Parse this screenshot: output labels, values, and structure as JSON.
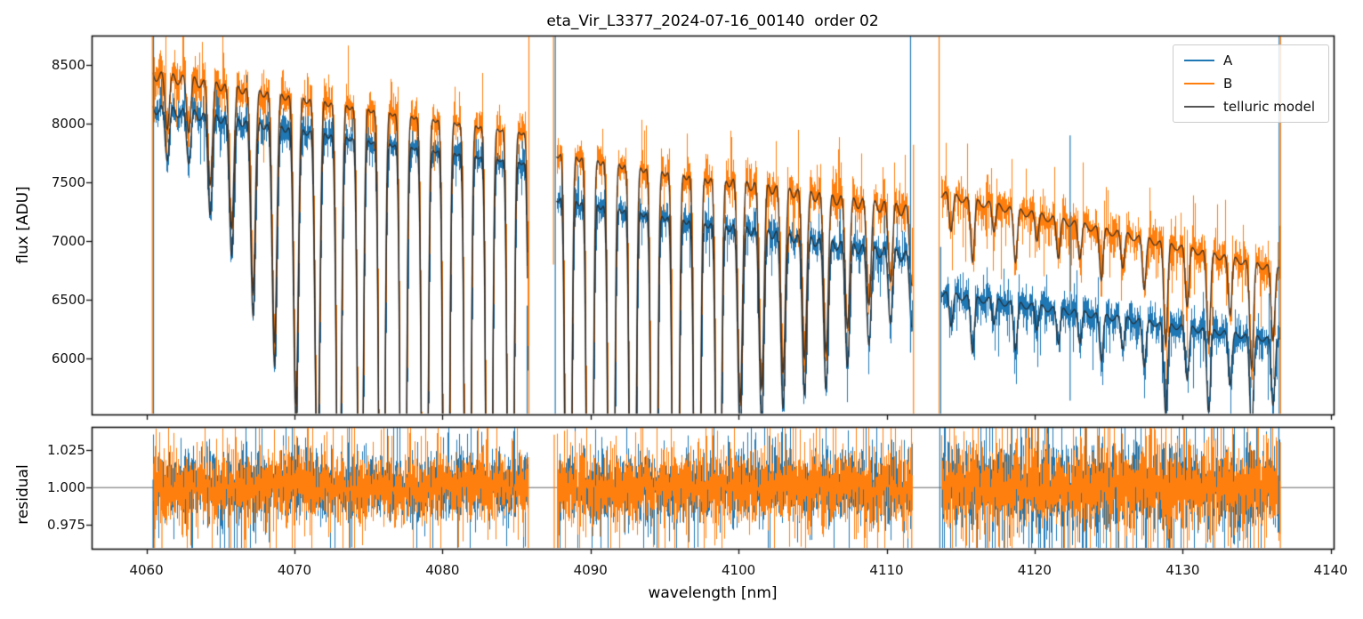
{
  "chart_data": {
    "type": "line",
    "title": "eta_Vir_L3377_2024-07-16_00140  order 02",
    "xlabel": "wavelength [nm]",
    "xlim": [
      4056.3,
      4140.2
    ],
    "xticks": [
      {
        "v": 4060,
        "label": "4060"
      },
      {
        "v": 4070,
        "label": "4070"
      },
      {
        "v": 4080,
        "label": "4080"
      },
      {
        "v": 4090,
        "label": "4090"
      },
      {
        "v": 4100,
        "label": "4100"
      },
      {
        "v": 4110,
        "label": "4110"
      },
      {
        "v": 4120,
        "label": "4120"
      },
      {
        "v": 4130,
        "label": "4130"
      },
      {
        "v": 4140,
        "label": "4140"
      }
    ],
    "panels": [
      {
        "name": "flux",
        "ylabel": "flux [ADU]",
        "ylim": [
          5523,
          8750
        ],
        "yticks": [
          {
            "v": 6000,
            "label": "6000"
          },
          {
            "v": 6500,
            "label": "6500"
          },
          {
            "v": 7000,
            "label": "7000"
          },
          {
            "v": 7500,
            "label": "7500"
          },
          {
            "v": 8000,
            "label": "8000"
          },
          {
            "v": 8500,
            "label": "8500"
          }
        ]
      },
      {
        "name": "residual",
        "ylabel": "residual",
        "ylim": [
          0.9589,
          1.0402
        ],
        "hline": 1.0,
        "yticks": [
          {
            "v": 0.975,
            "label": "0.975"
          },
          {
            "v": 1.0,
            "label": "1.000"
          },
          {
            "v": 1.025,
            "label": "1.025"
          }
        ]
      }
    ],
    "legend": [
      {
        "label": "A",
        "color": "#1f77b4"
      },
      {
        "label": "B",
        "color": "#ff7f0e"
      },
      {
        "label": "telluric model",
        "color": "#555555"
      }
    ],
    "colors": {
      "A": "#1f77b4",
      "B": "#ff7f0e",
      "model": "rgba(38,38,38,0.8)",
      "hline": "#666666"
    },
    "segments": [
      {
        "range": [
          4060.42,
          4085.75
        ],
        "continuum": {
          "A": [
            8290,
            7840
          ],
          "B": [
            8580,
            8100
          ]
        },
        "lines": {
          "start": 4062.85,
          "spacing": 1.45,
          "sigma": 0.16,
          "transmission": [
            0.93,
            0.88,
            0.84,
            0.78,
            0.73,
            0.67,
            0.6,
            0.48,
            0.33,
            0.18,
            0.08,
            0.04,
            0.02,
            0.02,
            0.02,
            0.02
          ]
        },
        "weak_depth": 0.025,
        "noise": {
          "A": 0.0085,
          "B": 0.0105,
          "residual_A": 0.0095,
          "residual_B": 0.0105
        }
      },
      {
        "range": [
          4087.7,
          4111.72
        ],
        "continuum": {
          "A": [
            7600,
            7060
          ],
          "B": [
            7990,
            7460
          ]
        },
        "lines": {
          "start": 4088.5,
          "spacing": 1.45,
          "sigma": 0.16,
          "transmission": [
            0.03,
            0.03,
            0.03,
            0.03,
            0.03,
            0.04,
            0.08,
            0.35,
            0.73,
            0.75,
            0.77,
            0.79,
            0.8,
            0.83,
            0.86,
            0.89
          ]
        },
        "weak_depth": 0.035,
        "noise": {
          "A": 0.0085,
          "B": 0.0105,
          "residual_A": 0.01,
          "residual_B": 0.011
        }
      },
      {
        "range": [
          4113.68,
          4136.55
        ],
        "continuum": {
          "A": [
            6620,
            6220
          ],
          "B": [
            7480,
            6830
          ]
        },
        "lines": {
          "start": 4114.35,
          "spacing": 1.45,
          "sigma": 0.13,
          "transmission": [
            0.95,
            0.92,
            0.96,
            0.93,
            0.96,
            0.945,
            0.95,
            0.93,
            0.95,
            0.93,
            0.87,
            0.92,
            0.88,
            0.92,
            0.86,
            0.9
          ]
        },
        "weak_depth": 0.015,
        "noise": {
          "A": 0.011,
          "B": 0.012,
          "residual_A": 0.013,
          "residual_B": 0.013
        }
      }
    ],
    "spikes": {
      "flux": [
        {
          "wl": 4060.4,
          "series": "B",
          "from": 8750,
          "to": 5523
        },
        {
          "wl": 4060.48,
          "series": "A",
          "from": 8750,
          "to": 5523
        },
        {
          "wl": 4085.72,
          "series": "A",
          "from": 6450,
          "to": 5523
        },
        {
          "wl": 4085.84,
          "series": "B",
          "from": 8750,
          "to": 5523
        },
        {
          "wl": 4087.5,
          "series": "B",
          "from": 8750,
          "to": 6800
        },
        {
          "wl": 4087.62,
          "series": "A",
          "from": 8750,
          "to": 5523
        },
        {
          "wl": 4111.62,
          "series": "A",
          "from": 8750,
          "to": 6050
        },
        {
          "wl": 4111.82,
          "series": "B",
          "from": 7820,
          "to": 5523
        },
        {
          "wl": 4113.55,
          "series": "B",
          "from": 8750,
          "to": 5523
        },
        {
          "wl": 4113.66,
          "series": "A",
          "from": 6950,
          "to": 5523
        },
        {
          "wl": 4122.4,
          "series": "A",
          "from": 7900,
          "to": 5640
        },
        {
          "wl": 4136.52,
          "series": "A",
          "from": 8750,
          "to": 5523
        },
        {
          "wl": 4136.62,
          "series": "B",
          "from": 8750,
          "to": 5523
        }
      ],
      "residual": [
        {
          "wl": 4060.45,
          "series": "A",
          "from": 1.005,
          "to": 0.945
        },
        {
          "wl": 4060.55,
          "series": "B",
          "from": 1.01,
          "to": 0.94
        },
        {
          "wl": 4061.05,
          "series": "B",
          "from": 1.0,
          "to": 0.952
        },
        {
          "wl": 4085.8,
          "series": "B",
          "from": 1.02,
          "to": 0.959
        },
        {
          "wl": 4087.55,
          "series": "B",
          "from": 1.035,
          "to": 0.959
        },
        {
          "wl": 4111.7,
          "series": "B",
          "from": 1.03,
          "to": 0.959
        },
        {
          "wl": 4113.6,
          "series": "A",
          "from": 1.04,
          "to": 0.959
        },
        {
          "wl": 4136.5,
          "series": "A",
          "from": 1.04,
          "to": 0.97
        },
        {
          "wl": 4136.6,
          "series": "B",
          "from": 1.03,
          "to": 0.959
        }
      ]
    }
  }
}
